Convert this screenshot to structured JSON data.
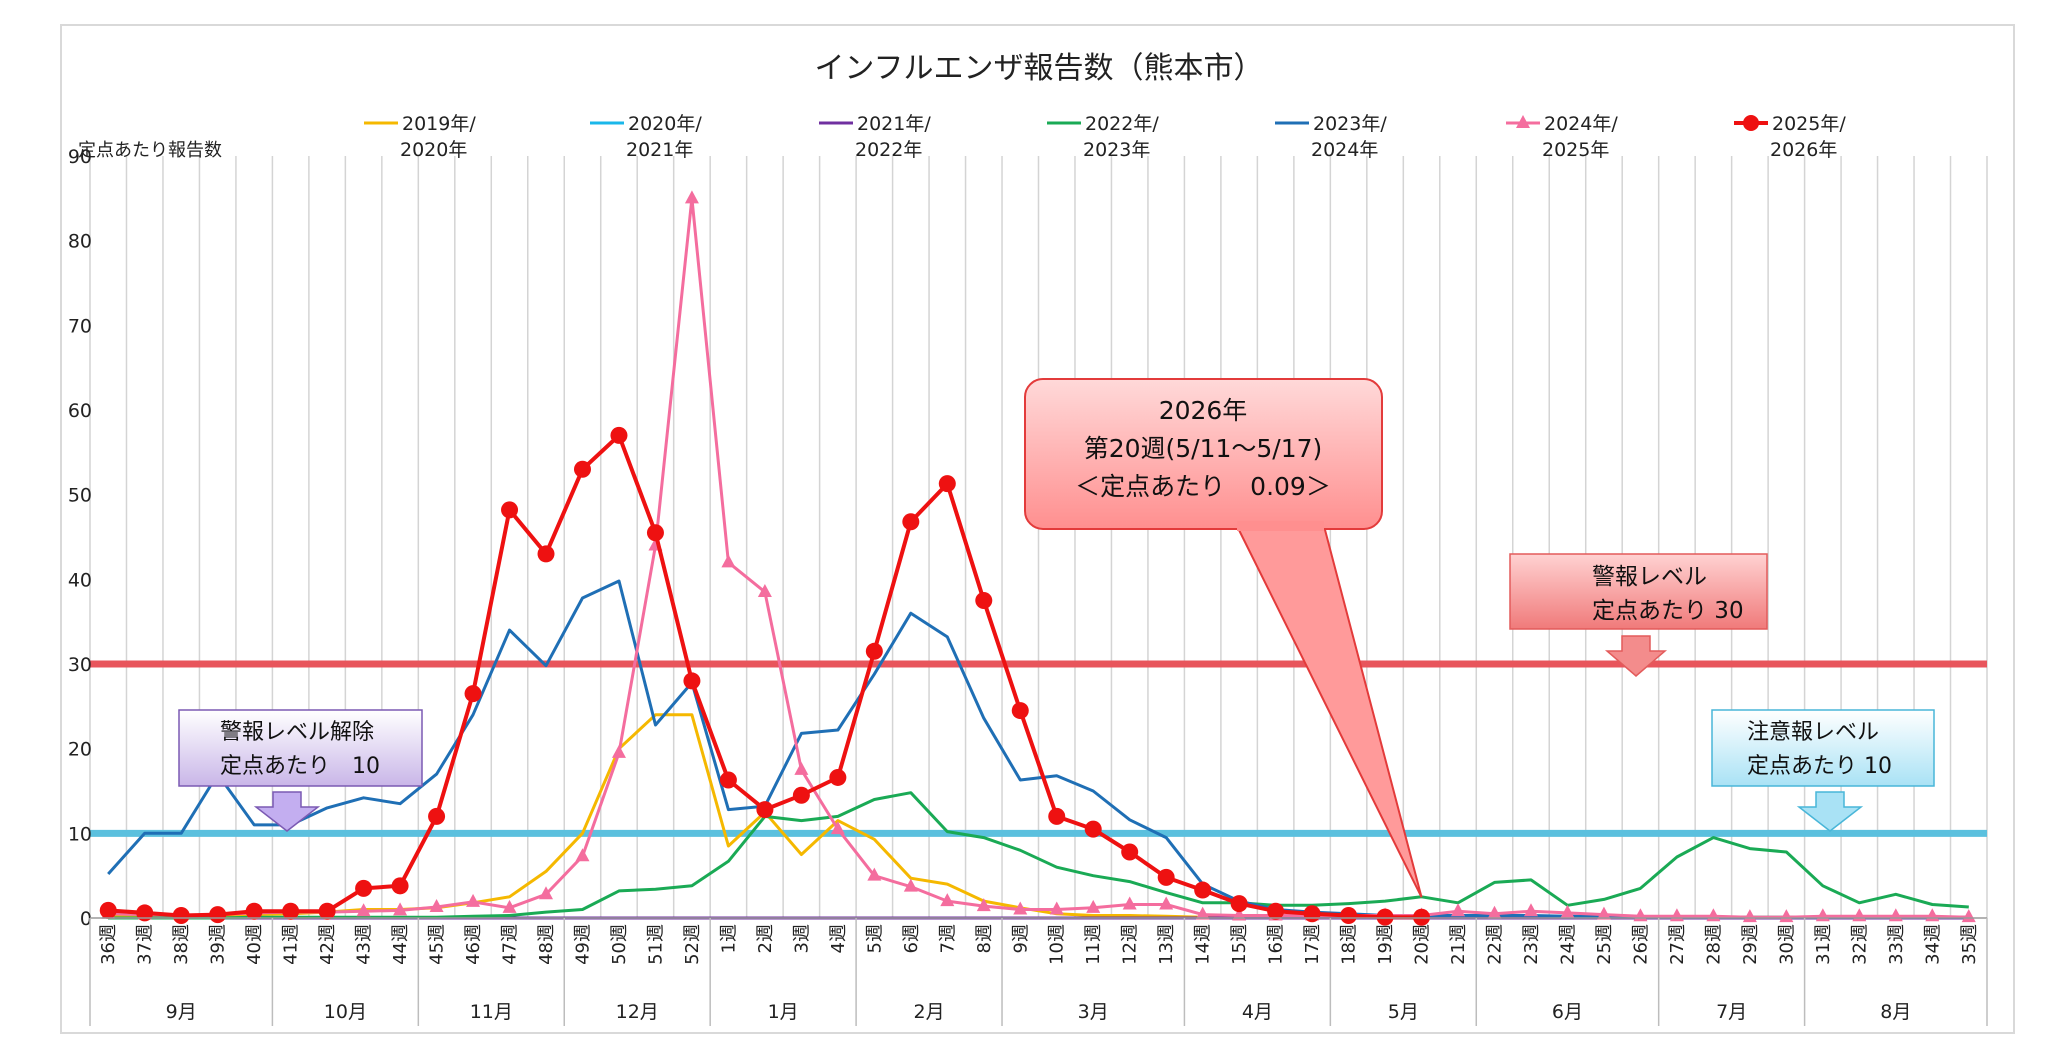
{
  "chart_data": {
    "type": "line",
    "title": "インフルエンザ報告数（熊本市）",
    "ylabel": "定点あたり報告数",
    "ylim": [
      0,
      90
    ],
    "yticks": [
      0,
      10,
      20,
      30,
      40,
      50,
      60,
      70,
      80,
      90
    ],
    "grid": true,
    "legend_position": "top",
    "categories": [
      "36週",
      "37週",
      "38週",
      "39週",
      "40週",
      "41週",
      "42週",
      "43週",
      "44週",
      "45週",
      "46週",
      "47週",
      "48週",
      "49週",
      "50週",
      "51週",
      "52週",
      "1週",
      "2週",
      "3週",
      "4週",
      "5週",
      "6週",
      "7週",
      "8週",
      "9週",
      "10週",
      "11週",
      "12週",
      "13週",
      "14週",
      "15週",
      "16週",
      "17週",
      "18週",
      "19週",
      "20週",
      "21週",
      "22週",
      "23週",
      "24週",
      "25週",
      "26週",
      "27週",
      "28週",
      "29週",
      "30週",
      "31週",
      "32週",
      "33週",
      "34週",
      "35週"
    ],
    "months": [
      {
        "label": "9月",
        "from": 0,
        "to": 4
      },
      {
        "label": "10月",
        "from": 5,
        "to": 8
      },
      {
        "label": "11月",
        "from": 9,
        "to": 12
      },
      {
        "label": "12月",
        "from": 13,
        "to": 16
      },
      {
        "label": "1月",
        "from": 17,
        "to": 20
      },
      {
        "label": "2月",
        "from": 21,
        "to": 24
      },
      {
        "label": "3月",
        "from": 25,
        "to": 29
      },
      {
        "label": "4月",
        "from": 30,
        "to": 33
      },
      {
        "label": "5月",
        "from": 34,
        "to": 37
      },
      {
        "label": "6月",
        "from": 38,
        "to": 42
      },
      {
        "label": "7月",
        "from": 43,
        "to": 46
      },
      {
        "label": "8月",
        "from": 47,
        "to": 51
      }
    ],
    "series": [
      {
        "name": "2019年/\n2020年",
        "color": "#f5b800",
        "marker": "none",
        "width": 3,
        "values": [
          0.3,
          0.3,
          0.3,
          0.3,
          0.4,
          0.5,
          0.7,
          1.0,
          1.0,
          1.2,
          1.8,
          2.5,
          5.5,
          10,
          20,
          24,
          24,
          8.5,
          12.5,
          7.5,
          11.5,
          9.3,
          4.7,
          4.0,
          2.0,
          1.2,
          0.5,
          0.3,
          0.3,
          0.2,
          0.1,
          0.1,
          0.1,
          0.1,
          0.1,
          0.1,
          0.1,
          0.1,
          0.1,
          0.1,
          0.1,
          0.1,
          0.1,
          0.1,
          0.1,
          0.1,
          0.1,
          0.1,
          0.1,
          0.1,
          0.1,
          0.1
        ]
      },
      {
        "name": "2020年/\n2021年",
        "color": "#1ab7ea",
        "marker": "none",
        "width": 3,
        "values": [
          0,
          0,
          0,
          0,
          0,
          0,
          0,
          0,
          0,
          0,
          0,
          0,
          0,
          0,
          0,
          0,
          0,
          0,
          0,
          0,
          0,
          0,
          0,
          0,
          0,
          0,
          0,
          0,
          0,
          0,
          0,
          0,
          0,
          0,
          0,
          0,
          0,
          0,
          0,
          0,
          0,
          0,
          0,
          0,
          0,
          0,
          0,
          0,
          0,
          0,
          0,
          0
        ]
      },
      {
        "name": "2021年/\n2022年",
        "color": "#7030a0",
        "marker": "none",
        "width": 3,
        "values": [
          0,
          0,
          0,
          0,
          0,
          0,
          0,
          0,
          0,
          0,
          0,
          0,
          0,
          0,
          0,
          0,
          0,
          0,
          0,
          0,
          0,
          0,
          0,
          0,
          0,
          0,
          0,
          0,
          0,
          0,
          0,
          0,
          0,
          0,
          0,
          0,
          0,
          0,
          0,
          0,
          0,
          0,
          0,
          0,
          0,
          0,
          0,
          0,
          0,
          0,
          0,
          0
        ]
      },
      {
        "name": "2022年/\n2023年",
        "color": "#1aaa55",
        "marker": "none",
        "width": 3,
        "values": [
          0,
          0,
          0,
          0,
          0.1,
          0.1,
          0.1,
          0.1,
          0.1,
          0.1,
          0.2,
          0.3,
          0.7,
          1.0,
          3.2,
          3.4,
          3.8,
          6.7,
          12.0,
          11.5,
          12.0,
          14.0,
          14.8,
          10.2,
          9.5,
          8.0,
          6.0,
          5.0,
          4.3,
          3.0,
          1.8,
          1.8,
          1.5,
          1.5,
          1.7,
          2.0,
          2.5,
          1.8,
          4.2,
          4.5,
          1.5,
          2.2,
          3.5,
          7.2,
          9.5,
          8.2,
          7.8,
          3.8,
          1.8,
          2.8,
          1.6,
          1.3
        ]
      },
      {
        "name": "2023年/\n2024年",
        "color": "#1f6fb5",
        "marker": "none",
        "width": 3,
        "values": [
          5.2,
          10,
          10,
          17,
          11,
          11,
          13,
          14.2,
          13.5,
          17,
          24,
          34,
          29.8,
          37.8,
          39.8,
          22.8,
          27.8,
          12.8,
          13.2,
          21.8,
          22.2,
          28.8,
          36,
          33.2,
          23.6,
          16.3,
          16.8,
          15,
          11.6,
          9.5,
          4,
          2,
          1,
          0.7,
          0.5,
          0.3,
          0.3,
          0.3,
          0.3,
          0.3,
          0.2,
          0.2,
          0.1,
          0.1,
          0.1,
          0.1,
          0.1,
          0.1,
          0.1,
          0.1,
          0.1,
          0.1
        ]
      },
      {
        "name": "2024年/\n2025年",
        "color": "#f46d9e",
        "marker": "triangle",
        "width": 3,
        "values": [
          0.5,
          0.4,
          0.3,
          0.4,
          0.6,
          0.7,
          0.7,
          0.8,
          0.9,
          1.3,
          1.9,
          1.2,
          2.8,
          7.3,
          19.5,
          44,
          85,
          42,
          38.5,
          17.5,
          10.5,
          5,
          3.7,
          2.0,
          1.4,
          1.0,
          1.0,
          1.2,
          1.6,
          1.6,
          0.4,
          0.3,
          0.3,
          0.3,
          0.3,
          0.3,
          0.3,
          0.8,
          0.5,
          0.8,
          0.6,
          0.4,
          0.2,
          0.2,
          0.2,
          0.1,
          0.1,
          0.2,
          0.2,
          0.2,
          0.2,
          0.1
        ]
      },
      {
        "name": "2025年/\n2026年",
        "color": "#ee1111",
        "marker": "circle",
        "width": 4,
        "values": [
          0.9,
          0.6,
          0.3,
          0.4,
          0.8,
          0.8,
          0.8,
          3.5,
          3.8,
          12,
          26.5,
          48.2,
          43,
          53,
          57,
          45.5,
          28,
          16.3,
          12.8,
          14.5,
          16.6,
          31.5,
          46.8,
          51.3,
          37.5,
          24.5,
          12,
          10.5,
          7.8,
          4.8,
          3.3,
          1.7,
          0.8,
          0.5,
          0.3,
          0.1,
          0.09,
          null,
          null,
          null,
          null,
          null,
          null,
          null,
          null,
          null,
          null,
          null,
          null,
          null,
          null,
          null
        ]
      }
    ],
    "reference_lines": [
      {
        "value": 30,
        "color": "#e8555c"
      },
      {
        "value": 10,
        "color": "#5bc0de"
      }
    ],
    "annotations": {
      "callout": {
        "line1": "2026年",
        "line2": "第20週(5/11～5/17)",
        "line3": "＜定点あたり　0.09＞",
        "target_index": 36,
        "target_value": 0.09
      },
      "alert": {
        "line1": "警報レベル",
        "line2": "定点あたり 30"
      },
      "alert_end": {
        "line1": "警報レベル解除",
        "line2": "定点あたり　10"
      },
      "caution": {
        "line1": "注意報レベル",
        "line2": "定点あたり 10"
      }
    }
  }
}
